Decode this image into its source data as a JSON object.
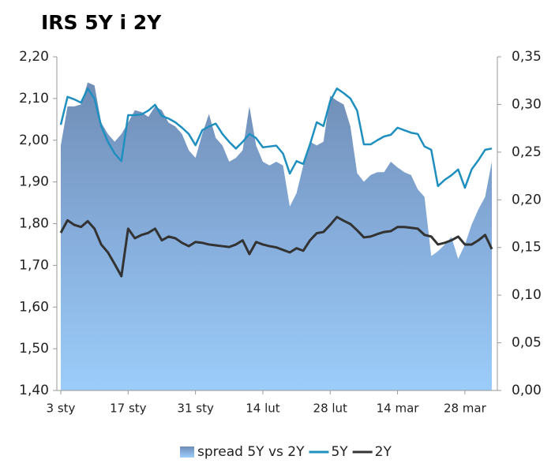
{
  "chart_data": {
    "type": "area_line",
    "title": "IRS 5Y i 2Y",
    "categories": [
      "3 sty",
      null,
      null,
      null,
      null,
      null,
      null,
      null,
      null,
      null,
      "17 sty",
      null,
      null,
      null,
      null,
      null,
      null,
      null,
      null,
      null,
      "31 sty",
      null,
      null,
      null,
      null,
      null,
      null,
      null,
      null,
      null,
      "14 lut",
      null,
      null,
      null,
      null,
      null,
      null,
      null,
      null,
      null,
      "28 lut",
      null,
      null,
      null,
      null,
      null,
      null,
      null,
      null,
      null,
      "14 mar",
      null,
      null,
      null,
      null,
      null,
      null,
      null,
      null,
      null,
      "28 mar",
      null,
      null,
      null,
      null
    ],
    "series": [
      {
        "name": "spread 5Y vs 2Y",
        "color": "#7e9cc4",
        "axis": "y2",
        "values": [
          0.257,
          0.298,
          0.298,
          0.3,
          0.323,
          0.32,
          0.281,
          0.269,
          0.261,
          0.269,
          0.281,
          0.294,
          0.292,
          0.287,
          0.298,
          0.294,
          0.281,
          0.277,
          0.269,
          0.252,
          0.244,
          0.269,
          0.29,
          0.265,
          0.257,
          0.24,
          0.244,
          0.252,
          0.298,
          0.257,
          0.24,
          0.236,
          0.24,
          0.236,
          0.193,
          0.207,
          0.236,
          0.261,
          0.257,
          0.261,
          0.309,
          0.304,
          0.3,
          0.277,
          0.228,
          0.219,
          0.226,
          0.229,
          0.229,
          0.24,
          0.234,
          0.229,
          0.226,
          0.211,
          0.203,
          0.141,
          0.146,
          0.153,
          0.161,
          0.138,
          0.153,
          0.174,
          0.19,
          0.203,
          0.24
        ]
      },
      {
        "name": "5Y",
        "color": "#1f8fbf",
        "values": [
          2.037,
          2.104,
          2.098,
          2.09,
          2.124,
          2.1,
          2.034,
          1.996,
          1.968,
          1.95,
          2.06,
          2.06,
          2.062,
          2.071,
          2.085,
          2.058,
          2.052,
          2.043,
          2.03,
          2.015,
          1.988,
          2.024,
          2.033,
          2.04,
          2.015,
          1.996,
          1.98,
          1.996,
          2.015,
          2.005,
          1.983,
          1.985,
          1.987,
          1.968,
          1.92,
          1.95,
          1.943,
          1.99,
          2.043,
          2.034,
          2.094,
          2.124,
          2.113,
          2.1,
          2.071,
          1.99,
          1.99,
          2.0,
          2.009,
          2.013,
          2.03,
          2.024,
          2.018,
          2.015,
          1.985,
          1.977,
          1.89,
          1.905,
          1.916,
          1.93,
          1.886,
          1.93,
          1.952,
          1.977,
          1.98
        ]
      },
      {
        "name": "2Y",
        "color": "#333333",
        "values": [
          1.778,
          1.808,
          1.797,
          1.792,
          1.806,
          1.788,
          1.75,
          1.731,
          1.703,
          1.674,
          1.788,
          1.765,
          1.773,
          1.778,
          1.788,
          1.76,
          1.769,
          1.765,
          1.754,
          1.746,
          1.756,
          1.754,
          1.75,
          1.748,
          1.746,
          1.744,
          1.75,
          1.76,
          1.727,
          1.756,
          1.75,
          1.746,
          1.743,
          1.737,
          1.731,
          1.741,
          1.735,
          1.76,
          1.777,
          1.78,
          1.797,
          1.816,
          1.807,
          1.799,
          1.784,
          1.767,
          1.769,
          1.775,
          1.78,
          1.782,
          1.792,
          1.792,
          1.79,
          1.788,
          1.773,
          1.769,
          1.75,
          1.754,
          1.76,
          1.769,
          1.75,
          1.75,
          1.76,
          1.773,
          1.739
        ]
      }
    ],
    "ylim": [
      1.4,
      2.2
    ],
    "yticks": [
      {
        "value": 1.4,
        "label": "1,40"
      },
      {
        "value": 1.5,
        "label": "1,50"
      },
      {
        "value": 1.6,
        "label": "1,60"
      },
      {
        "value": 1.7,
        "label": "1,70"
      },
      {
        "value": 1.8,
        "label": "1,80"
      },
      {
        "value": 1.9,
        "label": "1,90"
      },
      {
        "value": 2.0,
        "label": "2,00"
      },
      {
        "value": 2.1,
        "label": "2,10"
      },
      {
        "value": 2.2,
        "label": "2,20"
      }
    ],
    "y2lim": [
      0,
      0.35
    ],
    "y2ticks": [
      {
        "value": 0,
        "label": "0,00"
      },
      {
        "value": 0.05,
        "label": "0,05"
      },
      {
        "value": 0.1,
        "label": "0,10"
      },
      {
        "value": 0.15,
        "label": "0,15"
      },
      {
        "value": 0.2,
        "label": "0,20"
      },
      {
        "value": 0.25,
        "label": "0,25"
      },
      {
        "value": 0.3,
        "label": "0,30"
      },
      {
        "value": 0.35,
        "label": "0,35"
      }
    ],
    "legend": "bottom"
  }
}
